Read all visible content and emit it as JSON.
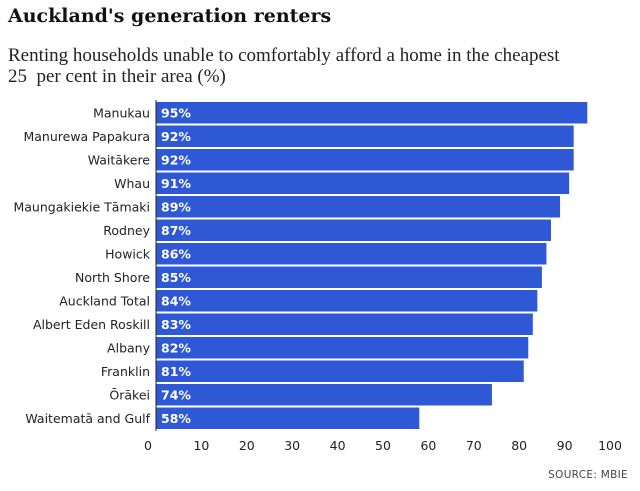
{
  "title": "Auckland's generation renters",
  "subtitle": "Renting households unable to comfortably afford a home in the cheapest\n25  per cent in their area (%)",
  "source": "SOURCE: MBIE",
  "colors": {
    "bar": "#2f58d6",
    "bar_separator": "#ffffff",
    "axis": "#222222"
  },
  "chart_data": {
    "type": "bar",
    "orientation": "horizontal",
    "title": "Auckland's generation renters",
    "subtitle": "Renting households unable to comfortably afford a home in the cheapest 25  per cent in their area (%)",
    "categories": [
      "Manukau",
      "Manurewa Papakura",
      "Waitākere",
      "Whau",
      "Maungakiekie Tāmaki",
      "Rodney",
      "Howick",
      "North Shore",
      "Auckland Total",
      "Albert Eden Roskill",
      "Albany",
      "Franklin",
      "Ōrākei",
      "Waitematā and Gulf"
    ],
    "values": [
      95,
      92,
      92,
      91,
      89,
      87,
      86,
      85,
      84,
      83,
      82,
      81,
      74,
      58
    ],
    "data_labels": [
      "95%",
      "92%",
      "92%",
      "91%",
      "89%",
      "87%",
      "86%",
      "85%",
      "84%",
      "83%",
      "82%",
      "81%",
      "74%",
      "58%"
    ],
    "xlim": [
      0,
      100
    ],
    "xticks": [
      0,
      10,
      20,
      30,
      40,
      50,
      60,
      70,
      80,
      90,
      100
    ],
    "xlabel": "",
    "ylabel": "",
    "grid": false,
    "legend": "none"
  }
}
